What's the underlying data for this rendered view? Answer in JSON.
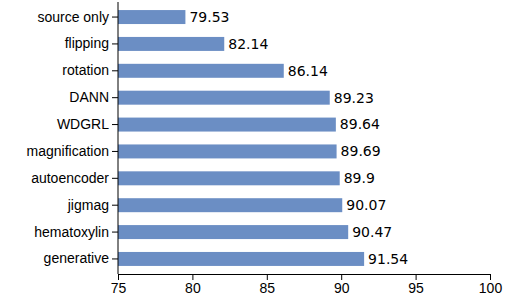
{
  "chart_data": {
    "type": "bar",
    "orientation": "horizontal",
    "categories": [
      "source only",
      "flipping",
      "rotation",
      "DANN",
      "WDGRL",
      "magnification",
      "autoencoder",
      "jigmag",
      "hematoxylin",
      "generative"
    ],
    "values": [
      79.53,
      82.14,
      86.14,
      89.23,
      89.64,
      89.69,
      89.9,
      90.07,
      90.47,
      91.54
    ],
    "color": "#6b8ec4",
    "xlim": [
      75,
      100
    ],
    "xticks": [
      75,
      80,
      85,
      90,
      95,
      100
    ],
    "data_labels": true,
    "grid": false
  }
}
